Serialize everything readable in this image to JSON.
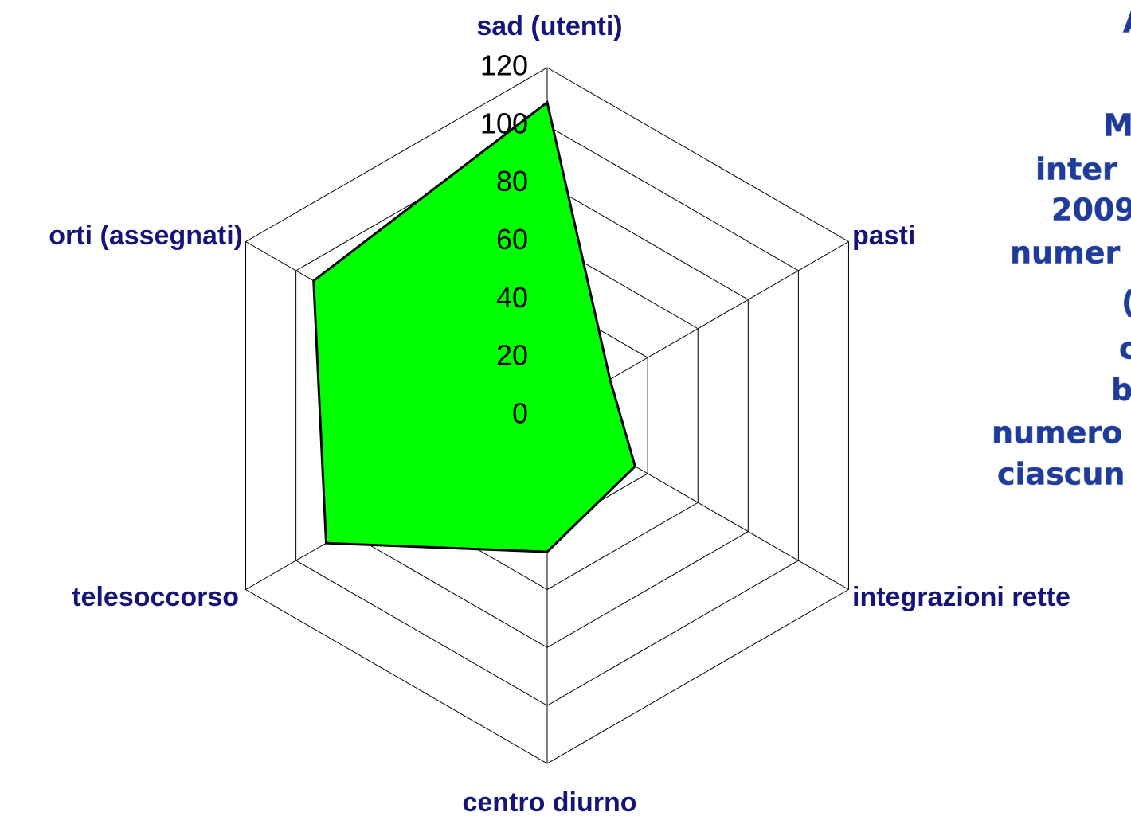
{
  "chart_data": {
    "type": "radar",
    "categories": [
      "sad (utenti)",
      "pasti",
      "integrazioni rette",
      "centro diurno",
      "telesoccorso",
      "orti (assegnati)"
    ],
    "values": [
      108,
      25,
      35,
      47,
      88,
      93
    ],
    "color": "#00ff00",
    "ylim": [
      0,
      120
    ],
    "yticks": [
      0,
      20,
      40,
      60,
      80,
      100,
      120
    ],
    "grid": true
  },
  "side_text": [
    "A",
    "M",
    "inter",
    "2009",
    "numer",
    "(",
    "c",
    "b",
    "numero",
    "ciascun"
  ]
}
